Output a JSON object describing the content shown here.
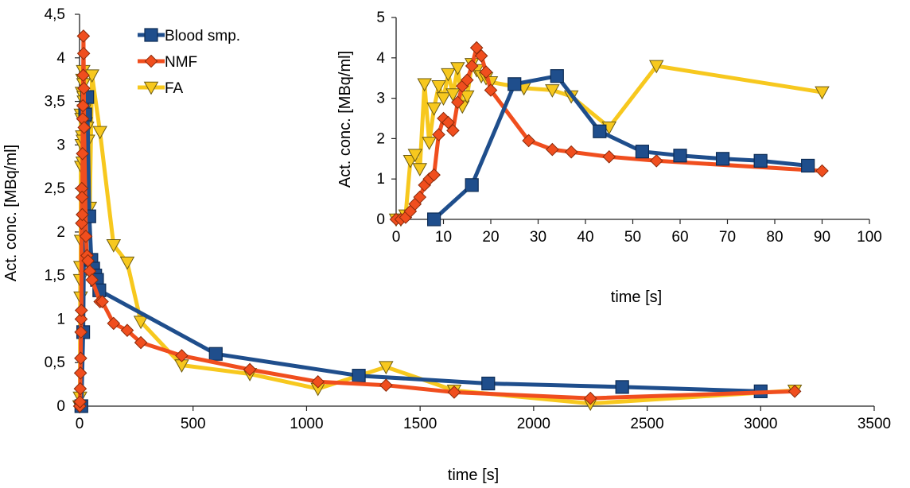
{
  "chart_data": [
    {
      "type": "line",
      "xlabel": "time [s]",
      "ylabel": "Act. conc. [MBq/ml]",
      "xlim": [
        0,
        3500
      ],
      "ylim": [
        0,
        4.5
      ],
      "x_ticks": [
        0,
        500,
        1000,
        1500,
        2000,
        2500,
        3000,
        3500
      ],
      "y_ticks": [
        0,
        0.5,
        1,
        1.5,
        2,
        2.5,
        3,
        3.5,
        4,
        4.5
      ],
      "x_tick_labels": [
        "0",
        "500",
        "1000",
        "1500",
        "2000",
        "2500",
        "3000",
        "3500"
      ],
      "y_tick_labels": [
        "0",
        "0,5",
        "1",
        "1,5",
        "2",
        "2,5",
        "3",
        "3,5",
        "4",
        "4,5"
      ],
      "grid": false,
      "legend_position": "top-left",
      "series": [
        {
          "name": "Blood smp.",
          "color": "#1f4e8c",
          "marker": "square",
          "x": [
            8,
            16,
            25,
            34,
            43,
            52,
            60,
            69,
            77,
            87,
            600,
            1230,
            1800,
            2390,
            3000
          ],
          "y": [
            0,
            0.85,
            3.35,
            3.55,
            2.18,
            1.68,
            1.58,
            1.5,
            1.45,
            1.33,
            0.6,
            0.35,
            0.26,
            0.22,
            0.17
          ]
        },
        {
          "name": "NMF",
          "color": "#f04e1e",
          "marker": "diamond",
          "x": [
            0,
            1,
            2,
            3,
            4,
            5,
            6,
            7,
            8,
            9,
            10,
            11,
            12,
            13,
            14,
            15,
            16,
            17,
            18,
            19,
            20,
            28,
            33,
            37,
            45,
            55,
            90,
            100,
            150,
            210,
            270,
            450,
            750,
            1050,
            1350,
            1650,
            2250,
            3150
          ],
          "y": [
            0,
            0,
            0.05,
            0.2,
            0.38,
            0.55,
            0.85,
            1.0,
            1.1,
            2.1,
            2.5,
            2.4,
            2.2,
            2.9,
            3.3,
            3.45,
            3.8,
            4.25,
            4.05,
            3.65,
            3.2,
            1.95,
            1.73,
            1.67,
            1.55,
            1.45,
            1.2,
            1.2,
            0.95,
            0.87,
            0.73,
            0.58,
            0.42,
            0.28,
            0.24,
            0.16,
            0.09,
            0.17
          ]
        },
        {
          "name": "FA",
          "color": "#f7c81e",
          "marker": "triangle-down",
          "x": [
            0,
            1,
            2,
            3,
            4,
            5,
            6,
            7,
            8,
            9,
            10,
            11,
            12,
            13,
            14,
            15,
            16,
            17,
            18,
            19,
            20,
            27,
            33,
            37,
            45,
            55,
            90,
            150,
            210,
            270,
            450,
            750,
            1050,
            1350,
            1650,
            2250,
            3150
          ],
          "y": [
            0,
            0,
            0.1,
            1.45,
            1.6,
            1.25,
            3.35,
            1.9,
            2.75,
            3.3,
            3.0,
            3.6,
            3.1,
            3.75,
            2.8,
            3.05,
            3.85,
            3.7,
            3.55,
            3.5,
            3.4,
            3.25,
            3.2,
            3.05,
            2.28,
            3.8,
            3.15,
            1.85,
            1.65,
            0.97,
            0.47,
            0.37,
            0.2,
            0.45,
            0.18,
            0.03,
            0.18
          ]
        }
      ]
    },
    {
      "type": "line",
      "xlabel": "time [s]",
      "ylabel": "Act. conc. [MBq/ml]",
      "xlim": [
        0,
        100
      ],
      "ylim": [
        0,
        5
      ],
      "x_ticks": [
        0,
        10,
        20,
        30,
        40,
        50,
        60,
        70,
        80,
        90,
        100
      ],
      "y_ticks": [
        0,
        1,
        2,
        3,
        4,
        5
      ],
      "x_tick_labels": [
        "0",
        "10",
        "20",
        "30",
        "40",
        "50",
        "60",
        "70",
        "80",
        "90",
        "100"
      ],
      "y_tick_labels": [
        "0",
        "1",
        "2",
        "3",
        "4",
        "5"
      ],
      "grid": false,
      "series": [
        {
          "name": "Blood smp.",
          "color": "#1f4e8c",
          "marker": "square",
          "x": [
            8,
            16,
            25,
            34,
            43,
            52,
            60,
            69,
            77,
            87
          ],
          "y": [
            0,
            0.85,
            3.35,
            3.55,
            2.18,
            1.68,
            1.58,
            1.5,
            1.45,
            1.33
          ]
        },
        {
          "name": "NMF",
          "color": "#f04e1e",
          "marker": "diamond",
          "x": [
            0,
            1,
            2,
            3,
            4,
            5,
            6,
            7,
            8,
            9,
            10,
            11,
            12,
            13,
            14,
            15,
            16,
            17,
            18,
            19,
            20,
            28,
            33,
            37,
            45,
            55,
            90
          ],
          "y": [
            0,
            0,
            0.05,
            0.2,
            0.38,
            0.55,
            0.85,
            1.0,
            1.1,
            2.1,
            2.5,
            2.4,
            2.2,
            2.9,
            3.3,
            3.45,
            3.8,
            4.25,
            4.05,
            3.65,
            3.2,
            1.95,
            1.73,
            1.67,
            1.55,
            1.45,
            1.2
          ]
        },
        {
          "name": "FA",
          "color": "#f7c81e",
          "marker": "triangle-down",
          "x": [
            0,
            1,
            2,
            3,
            4,
            5,
            6,
            7,
            8,
            9,
            10,
            11,
            12,
            13,
            14,
            15,
            16,
            17,
            18,
            19,
            20,
            27,
            33,
            37,
            45,
            55,
            90
          ],
          "y": [
            0,
            0,
            0.1,
            1.45,
            1.6,
            1.25,
            3.35,
            1.9,
            2.75,
            3.3,
            3.0,
            3.6,
            3.1,
            3.75,
            2.8,
            3.05,
            3.85,
            3.7,
            3.55,
            3.5,
            3.4,
            3.25,
            3.2,
            3.05,
            2.28,
            3.8,
            3.15
          ]
        }
      ]
    }
  ]
}
